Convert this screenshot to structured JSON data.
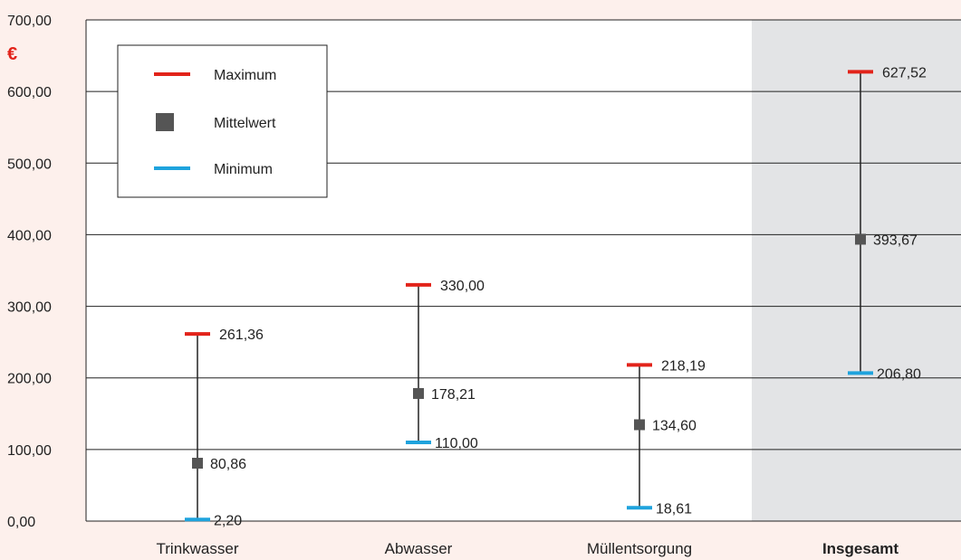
{
  "chart_data": {
    "type": "range",
    "unit": "€",
    "ylim": [
      0,
      700
    ],
    "yticks": [
      "0,00",
      "100,00",
      "200,00",
      "300,00",
      "400,00",
      "500,00",
      "600,00",
      "700,00"
    ],
    "categories": [
      "Trinkwasser",
      "Abwasser",
      "Müllentsorgung",
      "Insgesamt"
    ],
    "highlight_category": "Insgesamt",
    "series": [
      {
        "name": "Maximum",
        "values": [
          261.36,
          330.0,
          218.19,
          627.52
        ],
        "labels": [
          "261,36",
          "330,00",
          "218,19",
          "627,52"
        ]
      },
      {
        "name": "Mittelwert",
        "values": [
          80.86,
          178.21,
          134.6,
          393.67
        ],
        "labels": [
          "80,86",
          "178,21",
          "134,60",
          "393,67"
        ]
      },
      {
        "name": "Minimum",
        "values": [
          2.2,
          110.0,
          18.61,
          206.8
        ],
        "labels": [
          "2,20",
          "110,00",
          "18,61",
          "206,80"
        ]
      }
    ],
    "legend": {
      "position": "top-left",
      "entries": [
        "Maximum",
        "Mittelwert",
        "Minimum"
      ]
    },
    "grid": true
  },
  "colors": {
    "background": "#fdf0ec",
    "plot": "#ffffff",
    "highlight": "#e3e4e6",
    "maximum": "#e2231a",
    "mittelwert": "#555555",
    "minimum": "#1fa3dd",
    "unit": "#e2231a",
    "grid": "#222222"
  }
}
